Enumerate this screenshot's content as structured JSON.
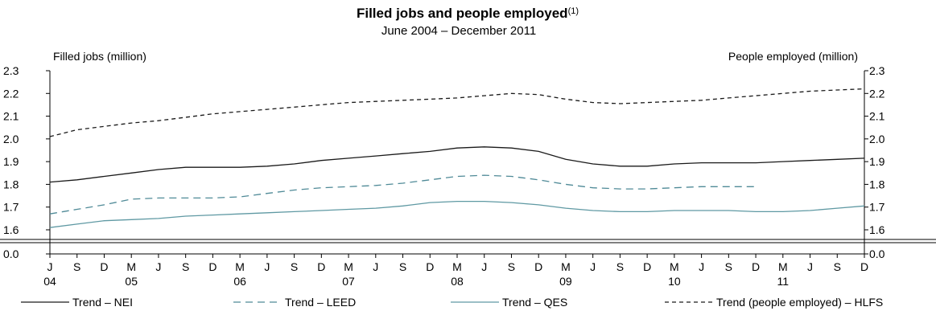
{
  "chart_data": {
    "type": "line",
    "title": "Filled jobs and people employed",
    "title_note": "(1)",
    "subtitle": "June 2004 – December 2011",
    "ylabel_left": "Filled jobs (million)",
    "ylabel_right": "People employed (million)",
    "ylim": [
      1.6,
      2.3
    ],
    "broken_axis_zero": "0.0",
    "yticks": [
      "1.6",
      "1.7",
      "1.8",
      "1.9",
      "2.0",
      "2.1",
      "2.2",
      "2.3"
    ],
    "xtick_months": [
      "J",
      "S",
      "D",
      "M",
      "J",
      "S",
      "D",
      "M",
      "J",
      "S",
      "D",
      "M",
      "J",
      "S",
      "D",
      "M",
      "J",
      "S",
      "D",
      "M",
      "J",
      "S",
      "D",
      "M",
      "J",
      "S",
      "D",
      "M",
      "J",
      "S",
      "D"
    ],
    "year_labels": [
      {
        "label": "04",
        "index": 0
      },
      {
        "label": "05",
        "index": 3
      },
      {
        "label": "06",
        "index": 7
      },
      {
        "label": "07",
        "index": 11
      },
      {
        "label": "08",
        "index": 15
      },
      {
        "label": "09",
        "index": 19
      },
      {
        "label": "10",
        "index": 23
      },
      {
        "label": "11",
        "index": 27
      }
    ],
    "x": [
      "2004-06",
      "2004-09",
      "2004-12",
      "2005-03",
      "2005-06",
      "2005-09",
      "2005-12",
      "2006-03",
      "2006-06",
      "2006-09",
      "2006-12",
      "2007-03",
      "2007-06",
      "2007-09",
      "2007-12",
      "2008-03",
      "2008-06",
      "2008-09",
      "2008-12",
      "2009-03",
      "2009-06",
      "2009-09",
      "2009-12",
      "2010-03",
      "2010-06",
      "2010-09",
      "2010-12",
      "2011-03",
      "2011-06",
      "2011-09",
      "2011-12"
    ],
    "series": [
      {
        "name": "Trend – NEI",
        "color": "#1a1a1a",
        "dash": "solid",
        "values": [
          1.81,
          1.82,
          1.835,
          1.85,
          1.865,
          1.875,
          1.875,
          1.875,
          1.88,
          1.89,
          1.905,
          1.915,
          1.925,
          1.935,
          1.945,
          1.96,
          1.965,
          1.96,
          1.945,
          1.91,
          1.89,
          1.88,
          1.88,
          1.89,
          1.895,
          1.895,
          1.895,
          1.9,
          1.905,
          1.91,
          1.915
        ]
      },
      {
        "name": "Trend – LEED",
        "color": "#4f8a97",
        "dash": "dashed",
        "values": [
          1.67,
          1.69,
          1.71,
          1.735,
          1.74,
          1.74,
          1.74,
          1.745,
          1.76,
          1.775,
          1.785,
          1.79,
          1.795,
          1.805,
          1.82,
          1.835,
          1.84,
          1.835,
          1.82,
          1.8,
          1.785,
          1.78,
          1.78,
          1.785,
          1.79,
          1.79,
          1.79,
          null,
          null,
          null,
          null
        ]
      },
      {
        "name": "Trend – QES",
        "color": "#5f99a3",
        "dash": "solid",
        "values": [
          1.61,
          1.625,
          1.64,
          1.645,
          1.65,
          1.66,
          1.665,
          1.67,
          1.675,
          1.68,
          1.685,
          1.69,
          1.695,
          1.705,
          1.72,
          1.725,
          1.725,
          1.72,
          1.71,
          1.695,
          1.685,
          1.68,
          1.68,
          1.685,
          1.685,
          1.685,
          1.68,
          1.68,
          1.685,
          1.695,
          1.705
        ]
      },
      {
        "name": "Trend (people employed) – HLFS",
        "color": "#1a1a1a",
        "dash": "short-dashed",
        "values": [
          2.01,
          2.04,
          2.055,
          2.07,
          2.08,
          2.095,
          2.11,
          2.12,
          2.13,
          2.14,
          2.15,
          2.16,
          2.165,
          2.17,
          2.175,
          2.18,
          2.19,
          2.2,
          2.195,
          2.175,
          2.16,
          2.155,
          2.16,
          2.165,
          2.17,
          2.18,
          2.19,
          2.2,
          2.21,
          2.215,
          2.22
        ]
      }
    ]
  }
}
